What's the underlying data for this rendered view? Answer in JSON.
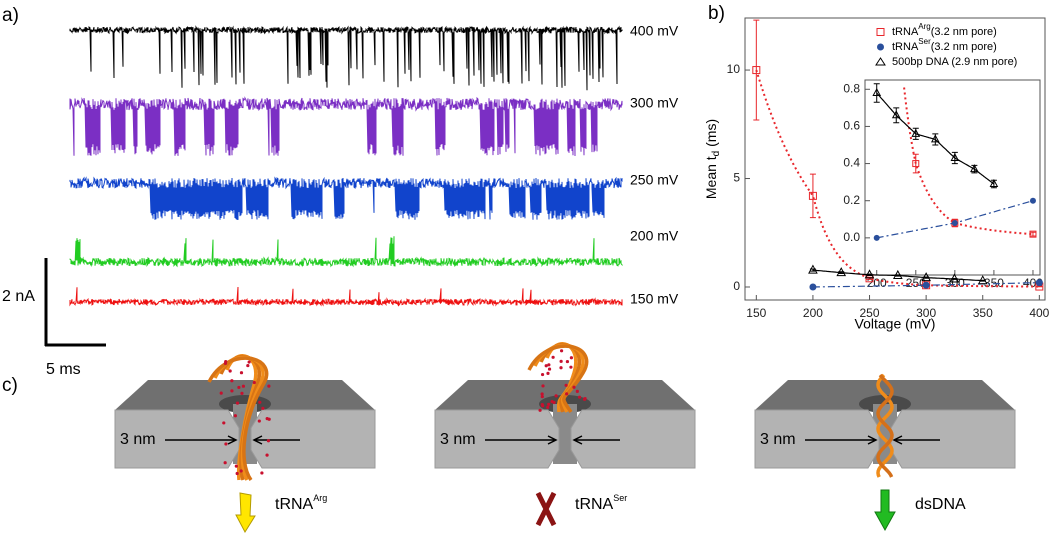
{
  "panel_a": {
    "label": "a)",
    "traces": [
      {
        "label": "400 mV",
        "color": "#000000"
      },
      {
        "label": "300 mV",
        "color": "#7b2fc4"
      },
      {
        "label": "250 mV",
        "color": "#1144cc"
      },
      {
        "label": "200 mV",
        "color": "#22cc22"
      },
      {
        "label": "150 mV",
        "color": "#ee1111"
      }
    ],
    "scale_current": "2 nA",
    "scale_time": "5 ms"
  },
  "panel_b_label": "b)",
  "chart_data": {
    "type": "scatter",
    "x_label": "Voltage (mV)",
    "y_label": "Mean t",
    "y_label_sub": "d",
    "y_label_suffix": " (ms)",
    "xlim": [
      140,
      405
    ],
    "ylim": [
      -0.6,
      12.4
    ],
    "xticks": [
      150,
      200,
      250,
      300,
      350,
      400
    ],
    "yticks": [
      0,
      5,
      10
    ],
    "series": [
      {
        "name": "tRNA",
        "name_sup": "Arg",
        "name_suffix": "(3.2 nm pore)",
        "color": "#e8262b",
        "marker": "square-open",
        "fit": "dotted",
        "x": [
          150,
          200,
          250,
          300,
          400
        ],
        "values": [
          10,
          4.2,
          0.4,
          0.08,
          0.02
        ],
        "errors": [
          2.3,
          1.0,
          0.05,
          0.02,
          0.01
        ]
      },
      {
        "name": "tRNA",
        "name_sup": "Ser",
        "name_suffix": "(3.2 nm pore)",
        "color": "#2a4f9c",
        "marker": "circle-filled",
        "fit": "dashdot",
        "x": [
          200,
          300,
          400
        ],
        "values": [
          0.0,
          0.08,
          0.2
        ]
      },
      {
        "name": "500bp DNA",
        "name_suffix": " (2.9 nm pore)",
        "color": "#000000",
        "marker": "triangle-open",
        "fit": "solid",
        "x": [
          200,
          225,
          250,
          275,
          300,
          325,
          350
        ],
        "values": [
          0.78,
          0.66,
          0.56,
          0.53,
          0.43,
          0.37,
          0.29
        ],
        "errors": [
          0.05,
          0.04,
          0.03,
          0.03,
          0.03,
          0.02,
          0.02
        ]
      }
    ],
    "inset": {
      "xlim": [
        185,
        409
      ],
      "ylim": [
        -0.2,
        0.85
      ],
      "xticks": [
        200,
        250,
        300,
        350,
        400
      ],
      "yticks": [
        {
          "value": 0,
          "label": "0.0"
        },
        {
          "value": 0.2,
          "label": "0.2"
        },
        {
          "value": 0.4,
          "label": "0.4"
        },
        {
          "value": 0.6,
          "label": "0.6"
        },
        {
          "value": 0.8,
          "label": "0.8"
        }
      ]
    }
  },
  "panel_c": {
    "label": "c)",
    "pores": [
      {
        "width_label": "3 nm",
        "molecule": "tRNA",
        "molecule_sup": "Arg"
      },
      {
        "width_label": "3 nm",
        "molecule": "tRNA",
        "molecule_sup": "Ser"
      },
      {
        "width_label": "3 nm",
        "molecule": "dsDNA"
      }
    ]
  }
}
